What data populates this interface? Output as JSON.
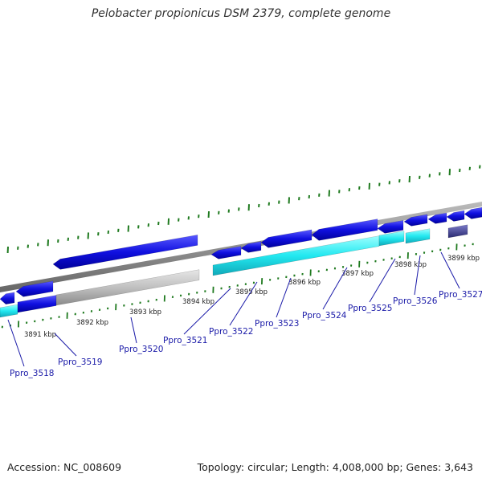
{
  "title": "Pelobacter propionicus DSM 2379, complete genome",
  "footer": {
    "accession": "Accession: NC_008609",
    "stats": "Topology: circular; Length: 4,008,000 bp; Genes: 3,643"
  },
  "kbp_labels": [
    "3891 kbp",
    "3892 kbp",
    "3893 kbp",
    "3894 kbp",
    "3895 kbp",
    "3896 kbp",
    "3897 kbp",
    "3898 kbp",
    "3899 kbp"
  ],
  "gene_labels": [
    "Ppro_3518",
    "Ppro_3519",
    "Ppro_3520",
    "Ppro_3521",
    "Ppro_3522",
    "Ppro_3523",
    "Ppro_3524",
    "Ppro_3525",
    "Ppro_3526",
    "Ppro_3527"
  ],
  "colors": {
    "cds": "#1010e0",
    "gene": "#22e8f0",
    "pseudo": "#c0c0c0",
    "other": "#4a4a90",
    "backbone": "#888888",
    "tick": "#1f7a1f",
    "label": "#1a1aa8"
  }
}
